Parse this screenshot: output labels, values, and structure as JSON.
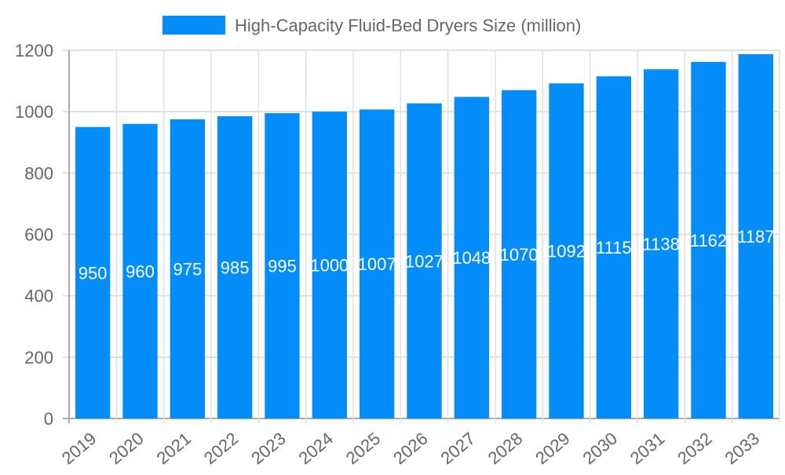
{
  "chart_data": {
    "type": "bar",
    "title": "",
    "xlabel": "",
    "ylabel": "",
    "legend": {
      "position": "top",
      "entries": [
        "High-Capacity Fluid-Bed Dryers Size (million)"
      ]
    },
    "categories": [
      "2019",
      "2020",
      "2021",
      "2022",
      "2023",
      "2024",
      "2025",
      "2026",
      "2027",
      "2028",
      "2029",
      "2030",
      "2031",
      "2032",
      "2033"
    ],
    "series": [
      {
        "name": "High-Capacity Fluid-Bed Dryers Size (million)",
        "values": [
          950,
          960,
          975,
          985,
          995,
          1000,
          1007,
          1027,
          1048,
          1070,
          1092,
          1115,
          1138,
          1162,
          1187
        ]
      }
    ],
    "ylim": [
      0,
      1200
    ],
    "yticks": [
      0,
      200,
      400,
      600,
      800,
      1000,
      1200
    ],
    "grid": true,
    "data_labels": true,
    "colors": {
      "bar": "#028dfb",
      "grid": "#e0e0e0",
      "axis": "#aaaaaa",
      "text": "#666666",
      "label": "#ffffff"
    }
  }
}
